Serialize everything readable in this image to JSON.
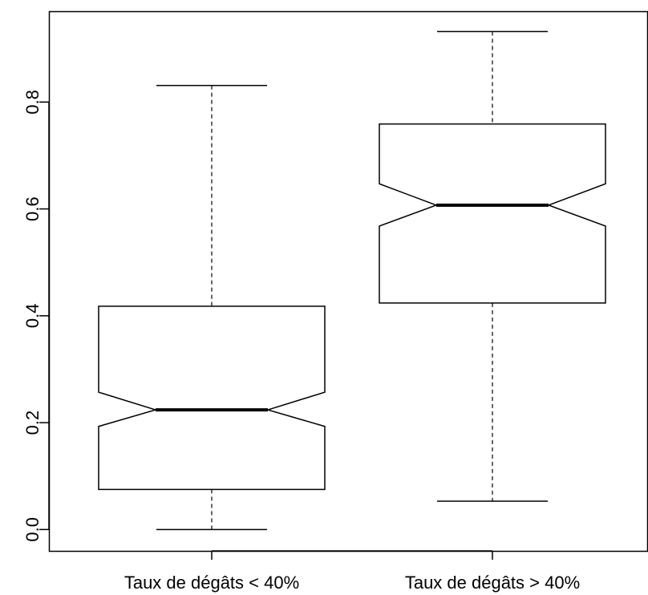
{
  "chart_data": {
    "type": "boxplot",
    "notched": true,
    "categories": [
      "Taux de dégâts < 40%",
      "Taux de dégâts > 40%"
    ],
    "boxes": [
      {
        "category": "Taux de dégâts < 40%",
        "min": 0.0,
        "q1": 0.075,
        "median": 0.224,
        "q3": 0.418,
        "max": 0.831,
        "notch_low": 0.193,
        "notch_high": 0.257
      },
      {
        "category": "Taux de dégâts > 40%",
        "min": 0.053,
        "q1": 0.424,
        "median": 0.607,
        "q3": 0.759,
        "max": 0.932,
        "notch_low": 0.568,
        "notch_high": 0.647
      }
    ],
    "y_ticks": [
      "0.0",
      "0.2",
      "0.4",
      "0.6",
      "0.8"
    ],
    "y_tick_values": [
      0.0,
      0.2,
      0.4,
      0.6,
      0.8
    ],
    "ylim": [
      -0.04,
      0.97
    ],
    "title": "",
    "xlabel": "",
    "ylabel": "",
    "grid": false,
    "colors": {
      "box_fill": "#ffffff",
      "stroke": "#000000"
    }
  }
}
